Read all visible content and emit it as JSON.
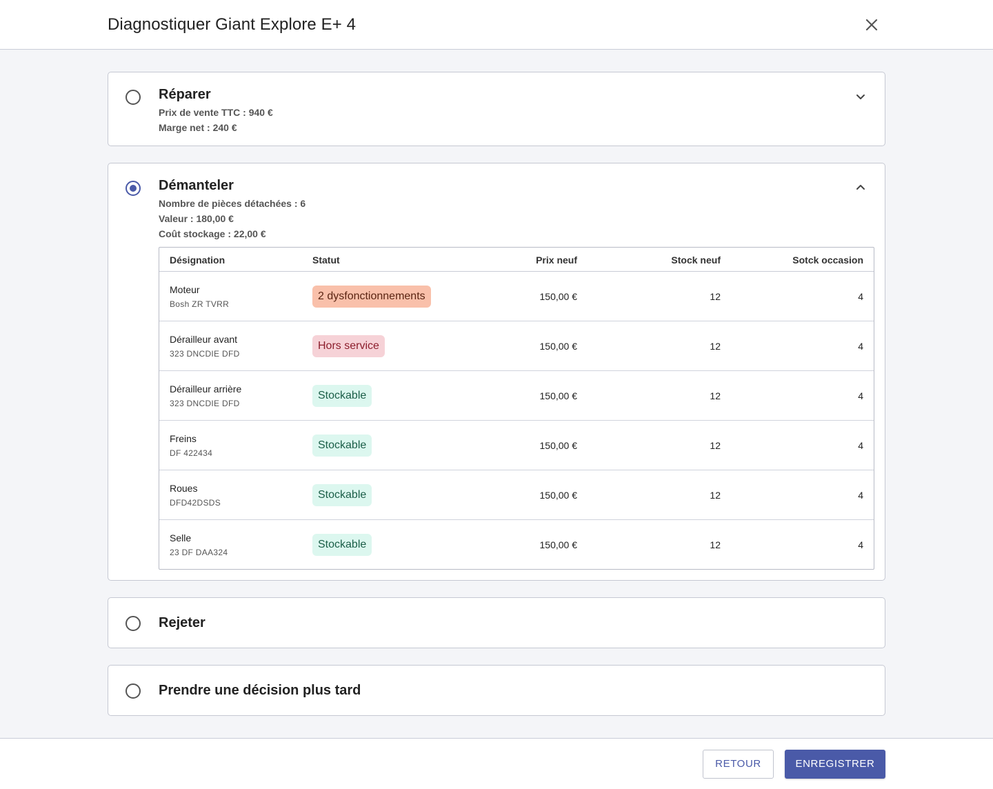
{
  "header": {
    "title": "Diagnostiquer Giant Explore E+ 4"
  },
  "options": {
    "repair": {
      "title": "Réparer",
      "lines": [
        "Prix de vente TTC : 940 €",
        "Marge net : 240 €"
      ]
    },
    "dismantle": {
      "title": "Démanteler",
      "lines": [
        "Nombre de pièces détachées : 6",
        "Valeur : 180,00 €",
        "Coût stockage : 22,00 €"
      ],
      "table": {
        "headers": [
          "Désignation",
          "Statut",
          "Prix neuf",
          "Stock neuf",
          "Sotck occasion"
        ],
        "rows": [
          {
            "name": "Moteur",
            "ref": "Bosh ZR TVRR",
            "status": "2 dysfonctionnements",
            "price": "150,00 €",
            "stock_new": "12",
            "stock_used": "4"
          },
          {
            "name": "Dérailleur avant",
            "ref": "323 DNCDIE DFD",
            "status": "Hors service",
            "price": "150,00 €",
            "stock_new": "12",
            "stock_used": "4"
          },
          {
            "name": "Dérailleur arrière",
            "ref": "323 DNCDIE DFD",
            "status": "Stockable",
            "price": "150,00 €",
            "stock_new": "12",
            "stock_used": "4"
          },
          {
            "name": "Freins",
            "ref": "DF 422434",
            "status": "Stockable",
            "price": "150,00 €",
            "stock_new": "12",
            "stock_used": "4"
          },
          {
            "name": "Roues",
            "ref": "DFD42DSDS",
            "status": "Stockable",
            "price": "150,00 €",
            "stock_new": "12",
            "stock_used": "4"
          },
          {
            "name": "Selle",
            "ref": "23 DF DAA324",
            "status": "Stockable",
            "price": "150,00 €",
            "stock_new": "12",
            "stock_used": "4"
          }
        ]
      }
    },
    "reject": {
      "title": "Rejeter"
    },
    "later": {
      "title": "Prendre une décision plus tard"
    }
  },
  "footer": {
    "back_label": "RETOUR",
    "save_label": "ENREGISTRER"
  },
  "colors": {
    "accent": "#4a5aa8"
  }
}
